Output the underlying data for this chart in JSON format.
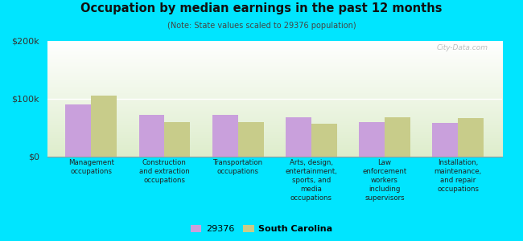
{
  "title": "Occupation by median earnings in the past 12 months",
  "subtitle": "(Note: State values scaled to 29376 population)",
  "categories": [
    "Management\noccupations",
    "Construction\nand extraction\noccupations",
    "Transportation\noccupations",
    "Arts, design,\nentertainment,\nsports, and\nmedia\noccupations",
    "Law\nenforcement\nworkers\nincluding\nsupervisors",
    "Installation,\nmaintenance,\nand repair\noccupations"
  ],
  "values_29376": [
    90000,
    72000,
    72000,
    68000,
    60000,
    58000
  ],
  "values_sc": [
    105000,
    60000,
    60000,
    57000,
    68000,
    66000
  ],
  "color_29376": "#c9a0dc",
  "color_sc": "#c8cc8a",
  "ylim": [
    0,
    200000
  ],
  "yticks": [
    0,
    100000,
    200000
  ],
  "ytick_labels": [
    "$0",
    "$100k",
    "$200k"
  ],
  "background_color": "#00e5ff",
  "legend_label_1": "29376",
  "legend_label_2": "South Carolina",
  "watermark": "City-Data.com",
  "bar_width": 0.35
}
